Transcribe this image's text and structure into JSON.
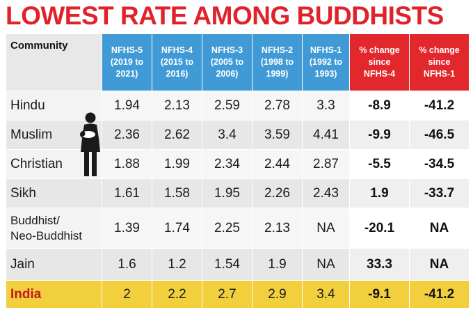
{
  "title": "LOWEST RATE AMONG BUDDHISTS",
  "header": {
    "community": "Community",
    "nfhs5": [
      "NFHS-5",
      "(2019 to",
      "2021)"
    ],
    "nfhs4": [
      "NFHS-4",
      "(2015 to",
      "2016)"
    ],
    "nfhs3": [
      "NFHS-3",
      "(2005 to",
      "2006)"
    ],
    "nfhs2": [
      "NFHS-2",
      "(1998 to",
      "1999)"
    ],
    "nfhs1": [
      "NFHS-1",
      "(1992 to",
      "1993)"
    ],
    "pct4": [
      "% change",
      "since",
      "NFHS-4"
    ],
    "pct1": [
      "% change",
      "since",
      "NFHS-1"
    ]
  },
  "rows": [
    {
      "name": "Hindu",
      "v": [
        "1.94",
        "2.13",
        "2.59",
        "2.78",
        "3.3"
      ],
      "c4": "-8.9",
      "c1": "-41.2"
    },
    {
      "name": "Muslim",
      "v": [
        "2.36",
        "2.62",
        "3.4",
        "3.59",
        "4.41"
      ],
      "c4": "-9.9",
      "c1": "-46.5"
    },
    {
      "name": "Christian",
      "v": [
        "1.88",
        "1.99",
        "2.34",
        "2.44",
        "2.87"
      ],
      "c4": "-5.5",
      "c1": "-34.5"
    },
    {
      "name": "Sikh",
      "v": [
        "1.61",
        "1.58",
        "1.95",
        "2.26",
        "2.43"
      ],
      "c4": "1.9",
      "c1": "-33.7"
    },
    {
      "name": [
        "Buddhist/",
        "Neo-Buddhist"
      ],
      "v": [
        "1.39",
        "1.74",
        "2.25",
        "2.13",
        "NA"
      ],
      "c4": "-20.1",
      "c1": "NA"
    },
    {
      "name": "Jain",
      "v": [
        "1.6",
        "1.2",
        "1.54",
        "1.9",
        "NA"
      ],
      "c4": "33.3",
      "c1": "NA"
    },
    {
      "name": "India",
      "v": [
        "2",
        "2.2",
        "2.7",
        "2.9",
        "3.4"
      ],
      "c4": "-9.1",
      "c1": "-41.2"
    }
  ],
  "colors": {
    "title": "#e0222b",
    "nfhs_header": "#3f9ad6",
    "change_header": "#e2282c",
    "india_row": "#f2cf3c"
  },
  "icons": [
    "mother-holding-baby-icon"
  ]
}
